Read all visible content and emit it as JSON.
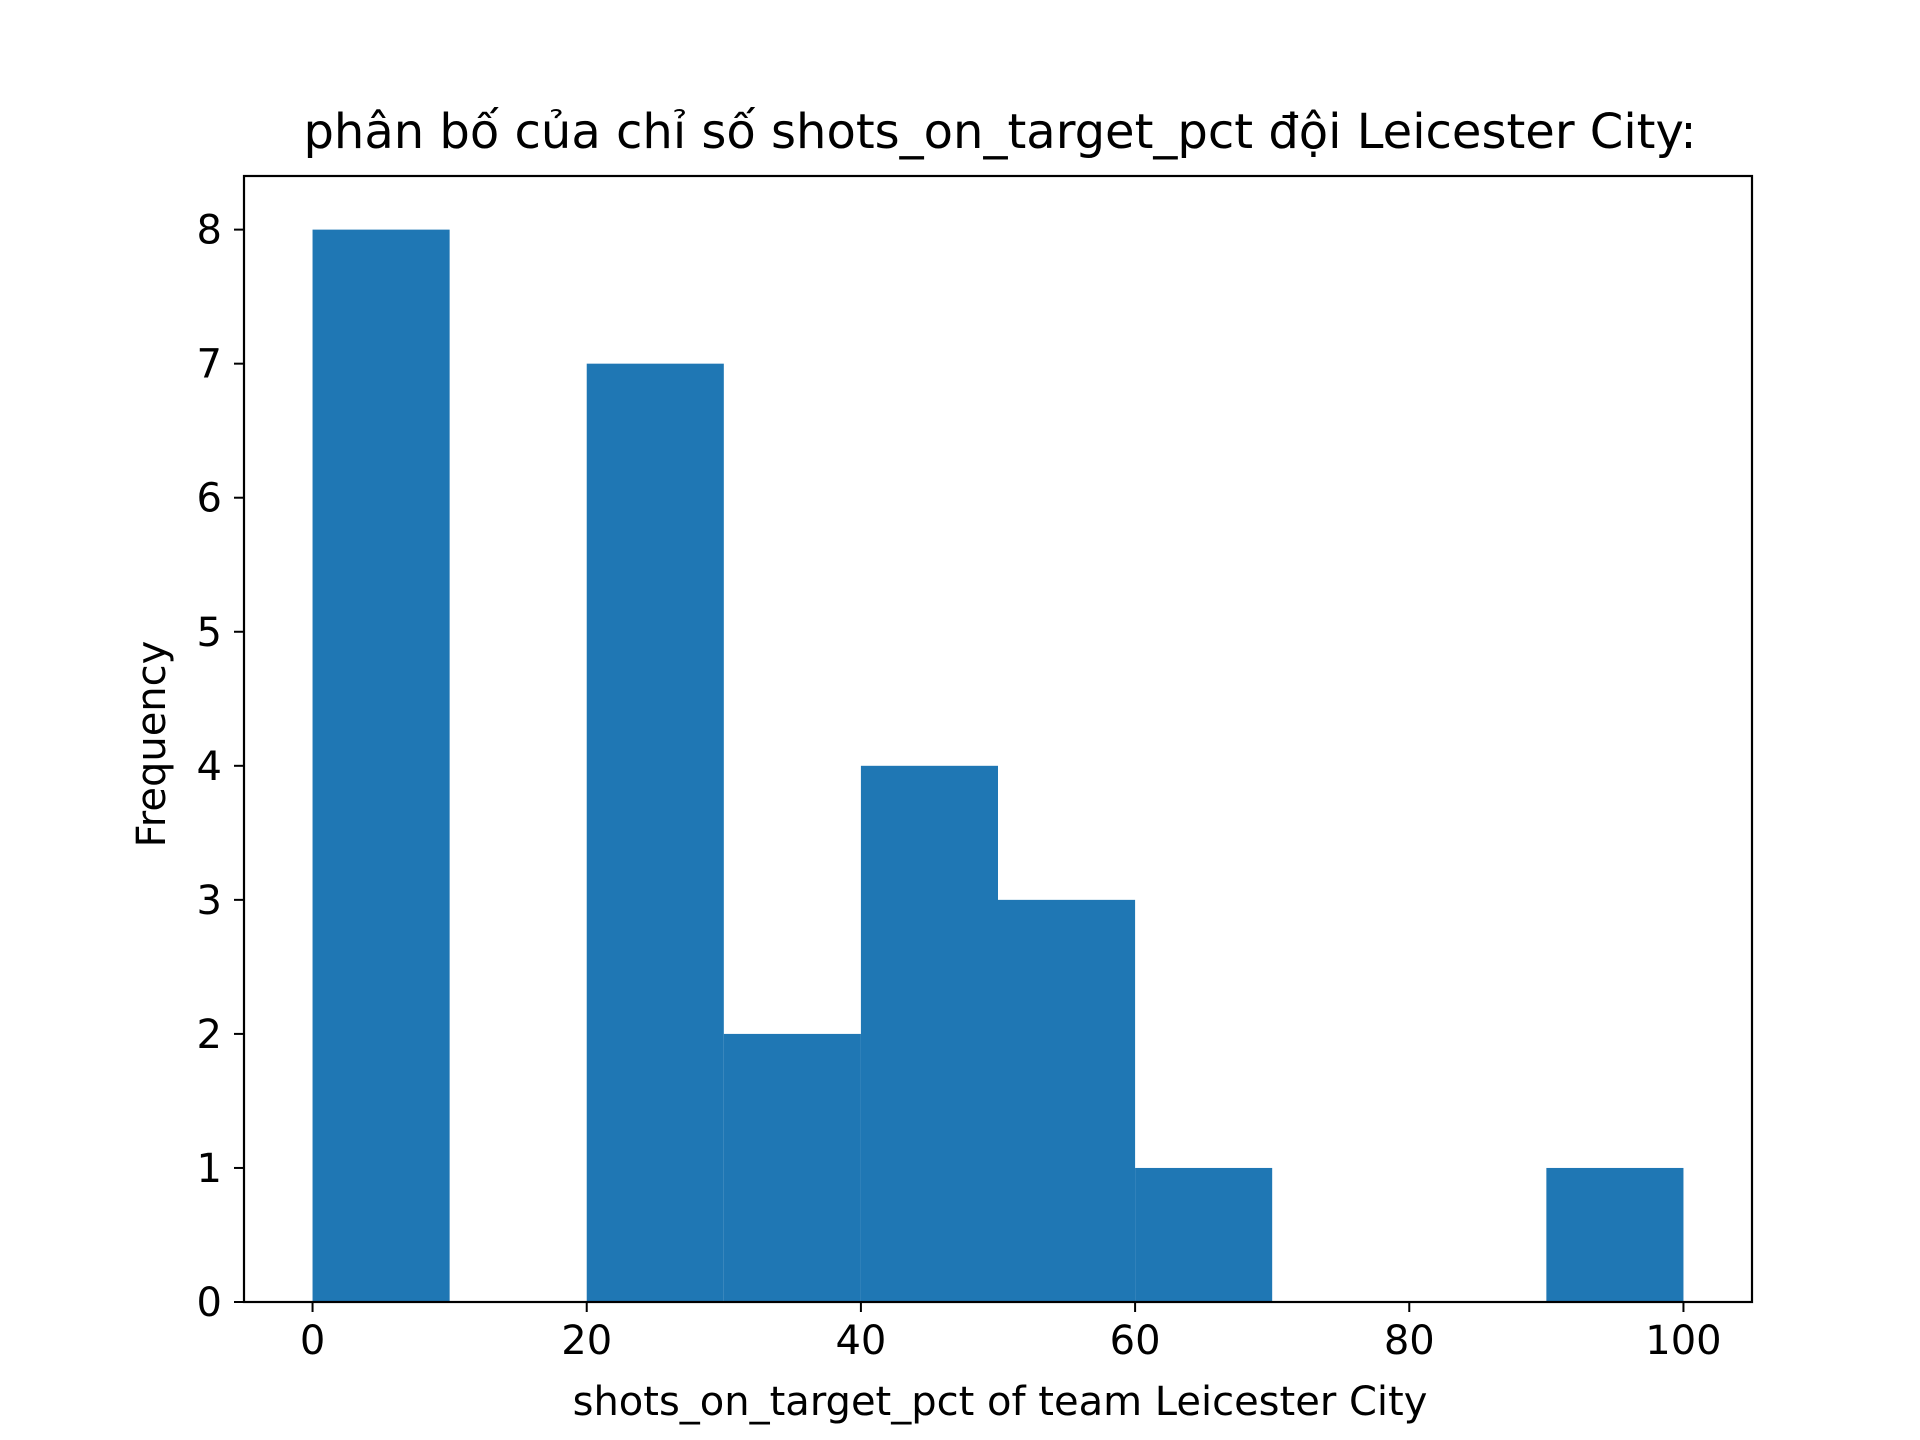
{
  "chart_data": {
    "type": "bar",
    "title": "phân bố của chỉ số shots_on_target_pct đội Leicester City:",
    "xlabel": "shots_on_target_pct of team Leicester City",
    "ylabel": "Frequency",
    "bins": [
      {
        "x0": 0,
        "x1": 10,
        "count": 8
      },
      {
        "x0": 10,
        "x1": 20,
        "count": 0
      },
      {
        "x0": 20,
        "x1": 30,
        "count": 7
      },
      {
        "x0": 30,
        "x1": 40,
        "count": 2
      },
      {
        "x0": 40,
        "x1": 50,
        "count": 4
      },
      {
        "x0": 50,
        "x1": 60,
        "count": 3
      },
      {
        "x0": 60,
        "x1": 70,
        "count": 1
      },
      {
        "x0": 70,
        "x1": 80,
        "count": 0
      },
      {
        "x0": 80,
        "x1": 90,
        "count": 0
      },
      {
        "x0": 90,
        "x1": 100,
        "count": 1
      }
    ],
    "xlim": [
      -5,
      105
    ],
    "ylim": [
      0,
      8.4
    ],
    "x_ticks": [
      0,
      20,
      40,
      60,
      80,
      100
    ],
    "x_tick_labels": [
      "0",
      "20",
      "40",
      "60",
      "80",
      "100"
    ],
    "y_ticks": [
      0,
      1,
      2,
      3,
      4,
      5,
      6,
      7,
      8
    ],
    "y_tick_labels": [
      "0",
      "1",
      "2",
      "3",
      "4",
      "5",
      "6",
      "7",
      "8"
    ],
    "grid": false,
    "legend": "none",
    "bar_color": "#1f77b4"
  }
}
